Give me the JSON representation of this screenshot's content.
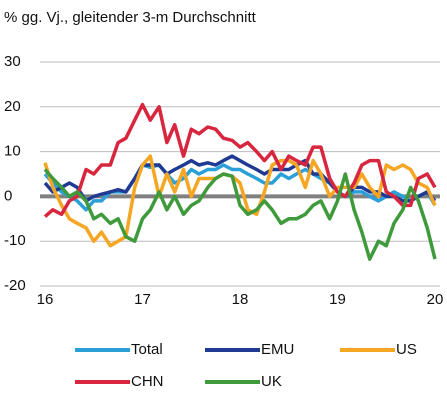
{
  "chart_data": {
    "type": "line",
    "title": "% gg. Vj., gleitender 3-m Durchschnitt",
    "x": [
      16,
      16.08,
      16.17,
      16.25,
      16.33,
      16.42,
      16.5,
      16.58,
      16.67,
      16.75,
      16.83,
      16.92,
      17,
      17.08,
      17.17,
      17.25,
      17.33,
      17.42,
      17.5,
      17.58,
      17.67,
      17.75,
      17.83,
      17.92,
      18,
      18.08,
      18.17,
      18.25,
      18.33,
      18.42,
      18.5,
      18.58,
      18.67,
      18.75,
      18.83,
      18.92,
      19,
      19.08,
      19.17,
      19.25,
      19.33,
      19.42,
      19.5,
      19.58,
      19.67,
      19.75,
      19.83,
      19.92,
      20
    ],
    "series": [
      {
        "name": "Total",
        "color": "#2a9fd8",
        "values": [
          5,
          3,
          1,
          0,
          -1,
          -3,
          -1,
          -1,
          1,
          1,
          1,
          4,
          7,
          6.5,
          7,
          5,
          3,
          4,
          6,
          5,
          6,
          6,
          7,
          6,
          6,
          5,
          4,
          3,
          3,
          5,
          4,
          5,
          6,
          5,
          4,
          3,
          1,
          0,
          1,
          1,
          0,
          -1,
          0,
          1,
          0,
          -1,
          0,
          1,
          -2
        ]
      },
      {
        "name": "EMU",
        "color": "#1f3a93",
        "values": [
          3,
          1,
          2,
          3,
          2,
          -1,
          0,
          0.5,
          1,
          1.5,
          1,
          4,
          7,
          7,
          7,
          5,
          6,
          7,
          8,
          7,
          7.5,
          7,
          8,
          9,
          8,
          7,
          6,
          5,
          6,
          6,
          6,
          7,
          8,
          5,
          5,
          3,
          1,
          0,
          2,
          2,
          1,
          1,
          0,
          0,
          -1,
          -1,
          0,
          1,
          -1
        ]
      },
      {
        "name": "US",
        "color": "#f5a623",
        "values": [
          7.5,
          2,
          -2,
          -5,
          -6,
          -7,
          -10,
          -8,
          -11,
          -10,
          -9,
          2,
          7,
          9,
          0,
          5,
          1,
          6,
          0,
          4,
          4,
          4,
          5,
          4.5,
          3,
          -3,
          -4,
          1,
          7,
          8,
          8,
          7,
          2,
          8,
          5,
          0,
          2,
          2,
          2,
          5,
          2,
          0,
          7,
          6,
          7,
          6,
          3,
          2,
          -2
        ]
      },
      {
        "name": "CHN",
        "color": "#d7263d",
        "values": [
          -4.5,
          -3,
          -4,
          -1,
          0,
          6,
          5,
          7,
          7,
          12,
          13,
          17,
          20.5,
          17,
          20,
          12,
          16,
          9,
          15,
          14,
          15.5,
          15,
          13,
          12.5,
          11,
          12,
          10,
          8,
          10,
          6,
          9,
          8,
          7,
          11,
          11,
          4,
          1,
          0,
          3,
          7,
          8,
          8,
          1,
          0,
          -2,
          -2,
          4,
          5,
          2
        ]
      },
      {
        "name": "UK",
        "color": "#3e9a3b",
        "values": [
          6,
          4,
          2,
          0,
          1,
          -1,
          -5,
          -4,
          -6,
          -5,
          -9,
          -10,
          -5,
          -3,
          1,
          -3,
          0,
          -4,
          -2,
          -1,
          2,
          4,
          5,
          4.5,
          -2,
          -4,
          -3,
          -1,
          -3,
          -6,
          -5,
          -5,
          -4,
          -2,
          -1,
          -5,
          -1,
          5,
          -3,
          -8,
          -14,
          -10,
          -11,
          -6,
          -3,
          2,
          -1,
          -7,
          -14
        ]
      }
    ],
    "xlim": [
      16,
      20
    ],
    "ylim": [
      -20,
      30
    ],
    "xticks": [
      16,
      17,
      18,
      19,
      20
    ],
    "yticks": [
      -20,
      -10,
      0,
      10,
      20,
      30
    ],
    "grid": true
  }
}
